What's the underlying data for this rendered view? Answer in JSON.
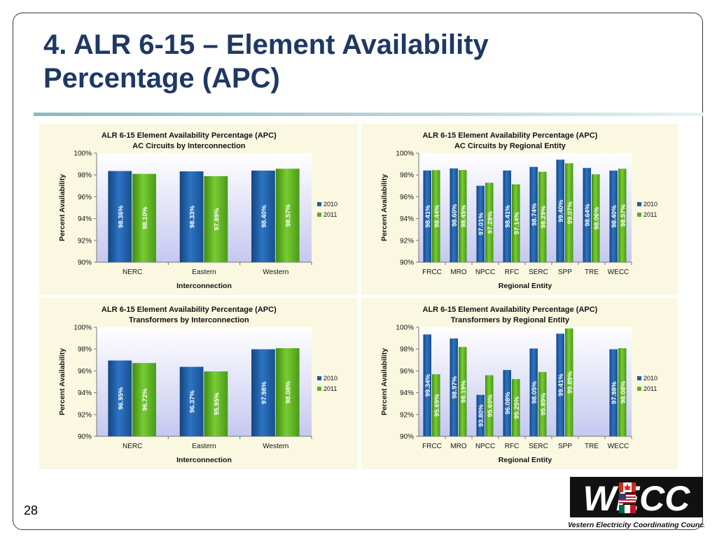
{
  "slide": {
    "title_line1": "4. ALR 6-15 – Element Availability",
    "title_line2": "Percentage (APC)",
    "page_number": "28",
    "logo_text": "WECC",
    "logo_caption": "Western Electricity Coordinating Council"
  },
  "colors": {
    "title": "#1f3864",
    "series_2010": "#1f5fa8",
    "series_2011": "#5ab21f",
    "panel_bg": "#fbf8e2",
    "plot_gradient_top": "#ffffff",
    "plot_gradient_bottom": "#c5c8f0"
  },
  "chart_data": [
    {
      "type": "bar",
      "title": "ALR 6-15 Element Availability Percentage (APC)",
      "subtitle": "AC Circuits by Interconnection",
      "xlabel": "Interconnection",
      "ylabel": "Percent Availability",
      "ylim": [
        90,
        100
      ],
      "yticks": [
        "90%",
        "92%",
        "94%",
        "96%",
        "98%",
        "100%"
      ],
      "categories": [
        "NERC",
        "Eastern",
        "Western"
      ],
      "series": [
        {
          "name": "2010",
          "values": [
            98.36,
            98.33,
            98.4
          ],
          "labels": [
            "98.36%",
            "98.33%",
            "98.40%"
          ]
        },
        {
          "name": "2011",
          "values": [
            98.1,
            97.89,
            98.57
          ],
          "labels": [
            "98.10%",
            "97.89%",
            "98.57%"
          ]
        }
      ],
      "legend": "right",
      "grid": false
    },
    {
      "type": "bar",
      "title": "ALR 6-15 Element Availability Percentage (APC)",
      "subtitle": "AC Circuits by Regional Entity",
      "xlabel": "Regional Entity",
      "ylabel": "Percent Availability",
      "ylim": [
        90,
        100
      ],
      "yticks": [
        "90%",
        "92%",
        "94%",
        "96%",
        "98%",
        "100%"
      ],
      "categories": [
        "FRCC",
        "MRO",
        "NPCC",
        "RFC",
        "SERC",
        "SPP",
        "TRE",
        "WECC"
      ],
      "series": [
        {
          "name": "2010",
          "values": [
            98.41,
            98.6,
            97.01,
            98.41,
            98.74,
            99.4,
            98.64,
            98.4
          ],
          "labels": [
            "98.41%",
            "98.60%",
            "97.01%",
            "98.41%",
            "98.74%",
            "99.40%",
            "98.64%",
            "98.40%"
          ]
        },
        {
          "name": "2011",
          "values": [
            98.44,
            98.45,
            97.28,
            97.14,
            98.29,
            99.07,
            98.06,
            98.57
          ],
          "labels": [
            "98.44%",
            "98.45%",
            "97.28%",
            "97.14%",
            "98.29%",
            "99.07%",
            "98.06%",
            "98.57%"
          ]
        }
      ],
      "legend": "right",
      "grid": false
    },
    {
      "type": "bar",
      "title": "ALR 6-15 Element Availability Percentage (APC)",
      "subtitle": "Transformers by Interconnection",
      "xlabel": "Interconnection",
      "ylabel": "Percent Availability",
      "ylim": [
        90,
        100
      ],
      "yticks": [
        "90%",
        "92%",
        "94%",
        "96%",
        "98%",
        "100%"
      ],
      "categories": [
        "NERC",
        "Eastern",
        "Western"
      ],
      "series": [
        {
          "name": "2010",
          "values": [
            96.95,
            96.37,
            97.98
          ],
          "labels": [
            "96.95%",
            "96.37%",
            "97.98%"
          ]
        },
        {
          "name": "2011",
          "values": [
            96.72,
            95.95,
            98.08
          ],
          "labels": [
            "96.72%",
            "95.95%",
            "98.08%"
          ]
        }
      ],
      "legend": "right",
      "grid": false
    },
    {
      "type": "bar",
      "title": "ALR 6-15 Element Availability Percentage (APC)",
      "subtitle": "Transformers by Regional Entity",
      "xlabel": "Regional Entity",
      "ylabel": "Percent Availability",
      "ylim": [
        90,
        100
      ],
      "yticks": [
        "90%",
        "92%",
        "94%",
        "96%",
        "98%",
        "100%"
      ],
      "categories": [
        "FRCC",
        "MRO",
        "NPCC",
        "RFC",
        "SERC",
        "SPP",
        "TRE",
        "WECC"
      ],
      "series": [
        {
          "name": "2010",
          "values": [
            99.34,
            98.97,
            93.8,
            96.08,
            98.05,
            99.41,
            null,
            97.98
          ],
          "labels": [
            "99.34%",
            "98.97%",
            "93.80%",
            "96.08%",
            "98.05%",
            "99.41%",
            "",
            "97.98%"
          ]
        },
        {
          "name": "2011",
          "values": [
            95.69,
            98.19,
            95.6,
            95.25,
            95.89,
            99.89,
            null,
            98.08
          ],
          "labels": [
            "95.69%",
            "98.19%",
            "95.60%",
            "95.25%",
            "95.89%",
            "99.89%",
            "",
            "98.08%"
          ]
        }
      ],
      "legend": "right",
      "grid": false
    }
  ]
}
